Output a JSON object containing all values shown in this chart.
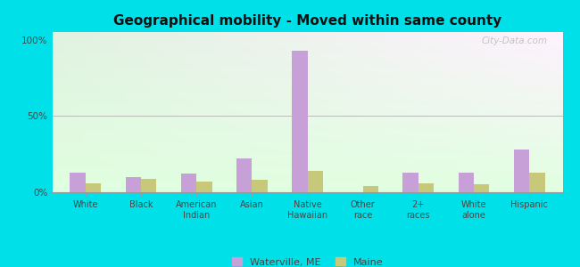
{
  "title": "Geographical mobility - Moved within same county",
  "categories": [
    "White",
    "Black",
    "American\nIndian",
    "Asian",
    "Native\nHawaiian",
    "Other\nrace",
    "2+\nraces",
    "White\nalone",
    "Hispanic"
  ],
  "waterville_values": [
    13,
    10,
    12,
    22,
    93,
    0,
    13,
    13,
    28
  ],
  "maine_values": [
    6,
    9,
    7,
    8,
    14,
    4,
    6,
    5,
    13
  ],
  "waterville_color": "#c8a0d8",
  "maine_color": "#c8c87a",
  "ylabel_ticks": [
    "0%",
    "50%",
    "100%"
  ],
  "ytick_values": [
    0,
    50,
    100
  ],
  "ylim": [
    0,
    105
  ],
  "background_color": "#00e0e8",
  "bar_width": 0.28,
  "legend_waterville": "Waterville, ME",
  "legend_maine": "Maine",
  "watermark": "City-Data.com"
}
